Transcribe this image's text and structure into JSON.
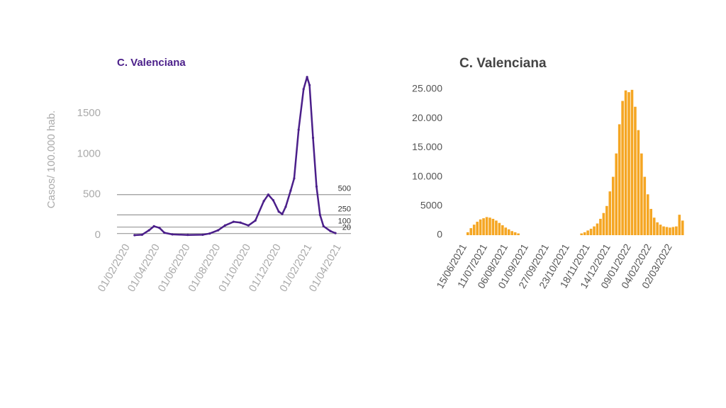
{
  "chart_data": [
    {
      "type": "line",
      "title": "C. Valenciana",
      "y_label": "Casos/ 100.000 hab.",
      "color": "#4b1f8a",
      "x": [
        "15/02/2020",
        "01/03/2020",
        "15/03/2020",
        "25/03/2020",
        "05/04/2020",
        "15/04/2020",
        "01/05/2020",
        "01/06/2020",
        "01/07/2020",
        "15/07/2020",
        "01/08/2020",
        "15/08/2020",
        "01/09/2020",
        "15/09/2020",
        "01/10/2020",
        "15/10/2020",
        "01/11/2020",
        "10/11/2020",
        "20/11/2020",
        "01/12/2020",
        "08/12/2020",
        "15/12/2020",
        "25/12/2020",
        "01/01/2021",
        "10/01/2021",
        "20/01/2021",
        "27/01/2021",
        "01/02/2021",
        "08/02/2021",
        "15/02/2021",
        "22/02/2021",
        "01/03/2021",
        "15/03/2021",
        "25/03/2021"
      ],
      "values": [
        0,
        5,
        60,
        110,
        90,
        30,
        10,
        3,
        5,
        20,
        60,
        120,
        165,
        155,
        120,
        180,
        420,
        500,
        430,
        290,
        260,
        350,
        550,
        700,
        1300,
        1800,
        1950,
        1850,
        1200,
        600,
        250,
        110,
        50,
        25
      ],
      "xlim": [
        "01/02/2020",
        "01/04/2021"
      ],
      "xticks": [
        "01/02/2020",
        "01/04/2020",
        "01/06/2020",
        "01/08/2020",
        "01/10/2020",
        "01/12/2020",
        "01/02/2021",
        "01/04/2021"
      ],
      "ylim": [
        0,
        2000
      ],
      "yticks": [
        0,
        500,
        1000,
        1500
      ],
      "hlines": [
        500,
        250,
        100,
        20
      ]
    },
    {
      "type": "bar",
      "title": "C. Valenciana",
      "color": "#f5a623",
      "x": [
        "19/06/2021",
        "23/06/2021",
        "27/06/2021",
        "01/07/2021",
        "05/07/2021",
        "09/07/2021",
        "13/07/2021",
        "17/07/2021",
        "21/07/2021",
        "25/07/2021",
        "29/07/2021",
        "02/08/2021",
        "06/08/2021",
        "10/08/2021",
        "14/08/2021",
        "18/08/2021",
        "22/08/2021",
        "10/11/2021",
        "14/11/2021",
        "18/11/2021",
        "22/11/2021",
        "26/11/2021",
        "30/11/2021",
        "04/12/2021",
        "08/12/2021",
        "12/12/2021",
        "16/12/2021",
        "20/12/2021",
        "24/12/2021",
        "28/12/2021",
        "01/01/2022",
        "05/01/2022",
        "09/01/2022",
        "13/01/2022",
        "17/01/2022",
        "21/01/2022",
        "25/01/2022",
        "29/01/2022",
        "02/02/2022",
        "06/02/2022",
        "10/02/2022",
        "14/02/2022",
        "18/02/2022",
        "22/02/2022",
        "26/02/2022",
        "02/03/2022",
        "06/03/2022",
        "10/03/2022",
        "14/03/2022",
        "18/03/2022"
      ],
      "values": [
        500,
        1200,
        1800,
        2300,
        2700,
        2900,
        3100,
        3000,
        2800,
        2500,
        2100,
        1700,
        1300,
        1000,
        700,
        500,
        300,
        300,
        500,
        800,
        1100,
        1500,
        2000,
        2800,
        3800,
        5000,
        7500,
        10000,
        14000,
        19000,
        23000,
        24800,
        24500,
        24900,
        22000,
        18000,
        14000,
        10000,
        7000,
        4500,
        3000,
        2200,
        1800,
        1500,
        1400,
        1300,
        1400,
        1500,
        3500,
        2500
      ],
      "xlim": [
        "12/06/2021",
        "20/03/2022"
      ],
      "xticks": [
        "15/06/2021",
        "11/07/2021",
        "06/08/2021",
        "01/09/2021",
        "27/09/2021",
        "23/10/2021",
        "18/11/2021",
        "14/12/2021",
        "09/01/2022",
        "04/02/2022",
        "02/03/2022"
      ],
      "ylim": [
        0,
        25000
      ],
      "yticks": [
        0,
        5000,
        {
          "value": 10000,
          "label": "10.000"
        },
        {
          "value": 15000,
          "label": "15.000"
        },
        {
          "value": 20000,
          "label": "20.000"
        },
        {
          "value": 25000,
          "label": "25.000"
        }
      ]
    }
  ]
}
